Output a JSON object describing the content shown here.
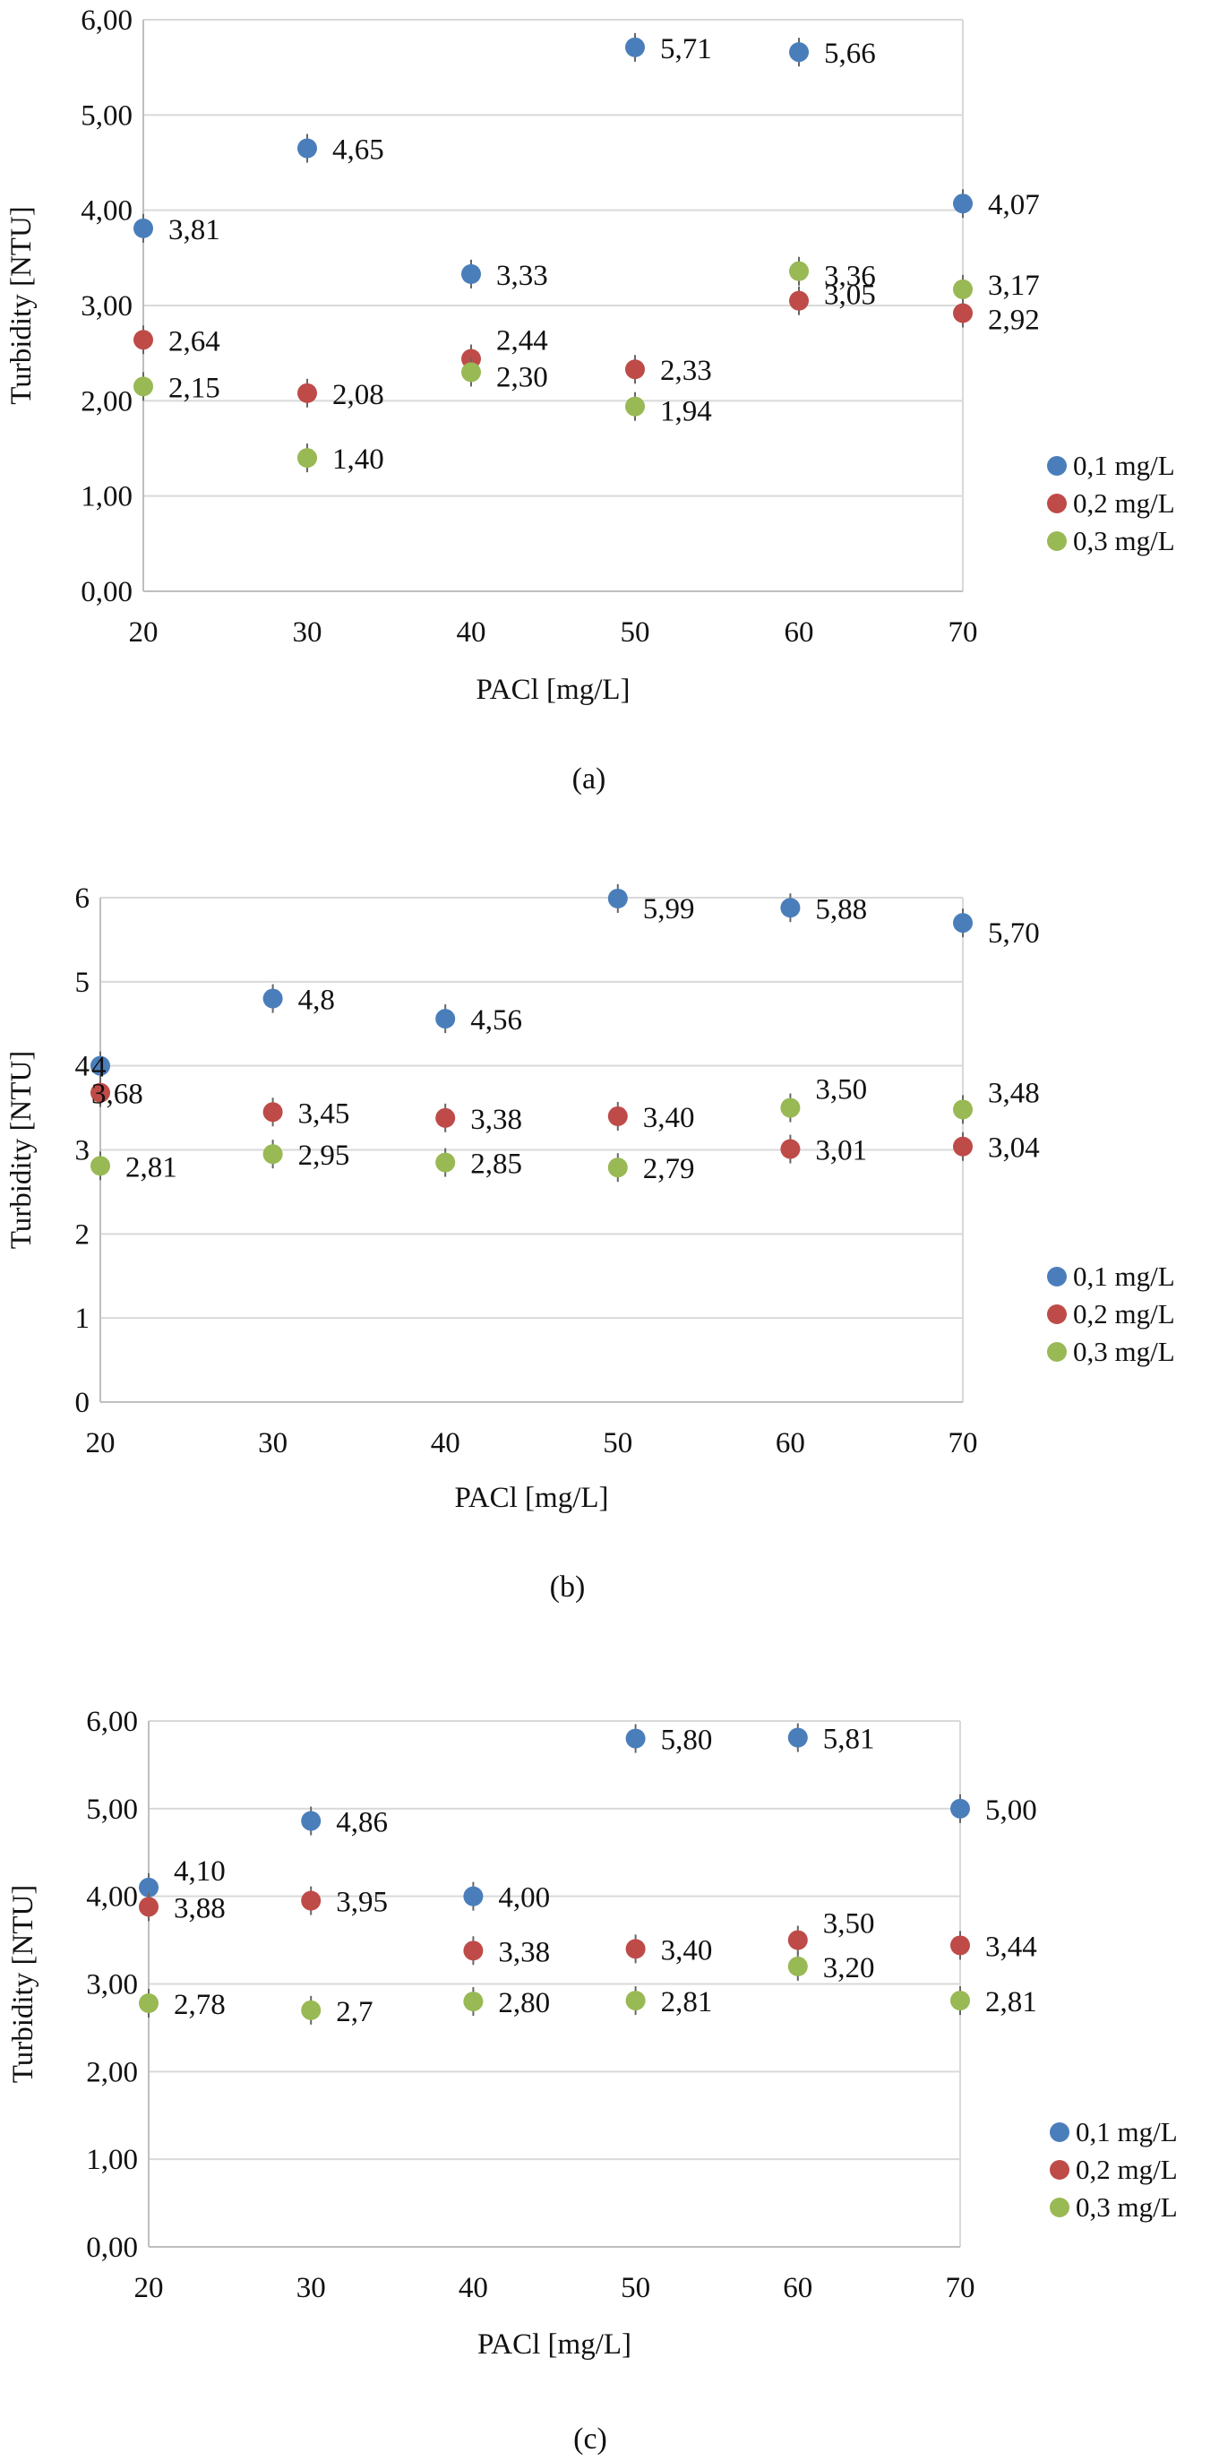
{
  "colors": {
    "series_0.1": "#4a7ebb",
    "series_0.2": "#be4b48",
    "series_0.3": "#98b954",
    "grid": "#d9d9d9",
    "axis": "#bfbfbf"
  },
  "chart_data": [
    {
      "type": "scatter",
      "panel": "(a)",
      "caption": "(a)",
      "xlabel": "PACl [mg/L]",
      "ylabel": "Turbidity [NTU]",
      "x": [
        20,
        30,
        40,
        50,
        60,
        70
      ],
      "xlim": [
        20,
        70
      ],
      "ylim": [
        0,
        6
      ],
      "y_ticks": [
        "0,00",
        "1,00",
        "2,00",
        "3,00",
        "4,00",
        "5,00",
        "6,00"
      ],
      "x_ticks": [
        "20",
        "30",
        "40",
        "50",
        "60",
        "70"
      ],
      "grid": "horizontal",
      "legend": "right",
      "series": [
        {
          "name": "0,1 mg/L",
          "color": "#4a7ebb",
          "values": [
            3.81,
            4.65,
            3.33,
            5.71,
            5.66,
            4.07
          ],
          "labels": [
            "3,81",
            "4,65",
            "3,33",
            "5,71",
            "5,66",
            "4,07"
          ]
        },
        {
          "name": "0,2 mg/L",
          "color": "#be4b48",
          "values": [
            2.64,
            2.08,
            2.44,
            2.33,
            3.05,
            2.92
          ],
          "labels": [
            "2,64",
            "2,08",
            "2,44",
            "2,33",
            "3,05",
            "2,92"
          ]
        },
        {
          "name": "0,3 mg/L",
          "color": "#98b954",
          "values": [
            2.15,
            1.4,
            2.3,
            1.94,
            3.36,
            3.17
          ],
          "labels": [
            "2,15",
            "1,40",
            "2,30",
            "1,94",
            "3,36",
            "3,17"
          ]
        }
      ]
    },
    {
      "type": "scatter",
      "panel": "(b)",
      "caption": "(b)",
      "xlabel": "PACl [mg/L]",
      "ylabel": "Turbidity [NTU]",
      "x": [
        20,
        30,
        40,
        50,
        60,
        70
      ],
      "xlim": [
        20,
        70
      ],
      "ylim": [
        0,
        6
      ],
      "y_ticks": [
        "0",
        "1",
        "2",
        "3",
        "4",
        "5",
        "6"
      ],
      "x_ticks": [
        "20",
        "30",
        "40",
        "50",
        "60",
        "70"
      ],
      "grid": "horizontal",
      "legend": "right",
      "series": [
        {
          "name": "0,1 mg/L",
          "color": "#4a7ebb",
          "values": [
            4.0,
            4.8,
            4.56,
            5.99,
            5.88,
            5.7
          ],
          "labels": [
            "4",
            "4,8",
            "4,56",
            "5,99",
            "5,88",
            "5,70"
          ]
        },
        {
          "name": "0,2 mg/L",
          "color": "#be4b48",
          "values": [
            3.68,
            3.45,
            3.38,
            3.4,
            3.01,
            3.04
          ],
          "labels": [
            "3,68",
            "3,45",
            "3,38",
            "3,40",
            "3,01",
            "3,04"
          ]
        },
        {
          "name": "0,3 mg/L",
          "color": "#98b954",
          "values": [
            2.81,
            2.95,
            2.85,
            2.79,
            3.5,
            3.48
          ],
          "labels": [
            "2,81",
            "2,95",
            "2,85",
            "2,79",
            "3,50",
            "3,48"
          ]
        }
      ]
    },
    {
      "type": "scatter",
      "panel": "(c)",
      "caption": "(c)",
      "xlabel": "PACl [mg/L]",
      "ylabel": "Turbidity [NTU]",
      "x": [
        20,
        30,
        40,
        50,
        60,
        70
      ],
      "xlim": [
        20,
        70
      ],
      "ylim": [
        0,
        6
      ],
      "y_ticks": [
        "0,00",
        "1,00",
        "2,00",
        "3,00",
        "4,00",
        "5,00",
        "6,00"
      ],
      "x_ticks": [
        "20",
        "30",
        "40",
        "50",
        "60",
        "70"
      ],
      "grid": "horizontal",
      "legend": "right",
      "series": [
        {
          "name": "0,1 mg/L",
          "color": "#4a7ebb",
          "values": [
            4.1,
            4.86,
            4.0,
            5.8,
            5.81,
            5.0
          ],
          "labels": [
            "4,10",
            "4,86",
            "4,00",
            "5,80",
            "5,81",
            "5,00"
          ]
        },
        {
          "name": "0,2 mg/L",
          "color": "#be4b48",
          "values": [
            3.88,
            3.95,
            3.38,
            3.4,
            3.5,
            3.44
          ],
          "labels": [
            "3,88",
            "3,95",
            "3,38",
            "3,40",
            "3,50",
            "3,44"
          ]
        },
        {
          "name": "0,3 mg/L",
          "color": "#98b954",
          "values": [
            2.78,
            2.7,
            2.8,
            2.81,
            3.2,
            2.81
          ],
          "labels": [
            "2,78",
            "2,7",
            "2,80",
            "2,81",
            "3,20",
            "2,81"
          ]
        }
      ]
    }
  ]
}
